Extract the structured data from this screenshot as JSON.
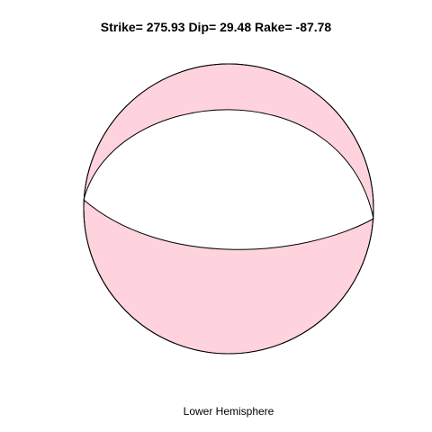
{
  "title": "Strike= 275.93 Dip= 29.48 Rake= -87.78",
  "subtitle": "Lower Hemisphere",
  "mechanism": {
    "strike": 275.93,
    "dip": 29.48,
    "rake": -87.78
  },
  "colors": {
    "compressional_fill": "#ffd3dd",
    "dilatational_fill": "#ffffff",
    "outline": "#000000"
  }
}
